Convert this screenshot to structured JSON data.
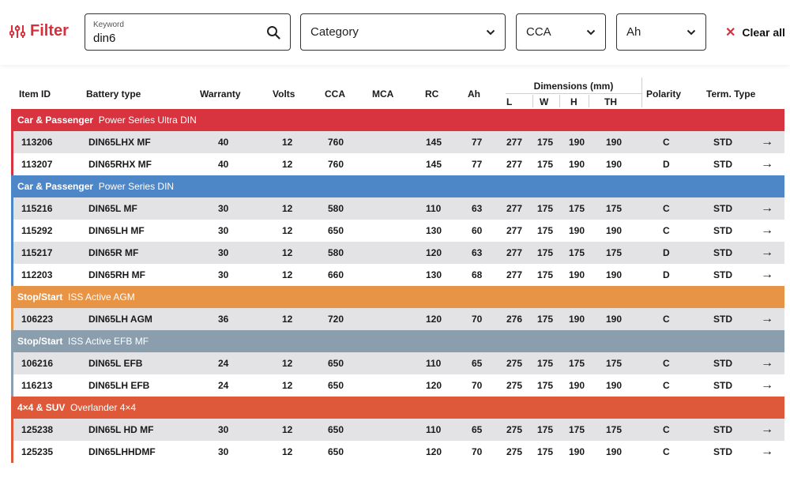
{
  "filter": {
    "title": "Filter",
    "icon": "sliders-icon",
    "keyword_label": "Keyword",
    "keyword_value": "din6",
    "category_placeholder": "Category",
    "cca_placeholder": "CCA",
    "ah_placeholder": "Ah",
    "clear_label": "Clear all"
  },
  "columns": {
    "item_id": "Item ID",
    "battery_type": "Battery type",
    "warranty": "Warranty",
    "volts": "Volts",
    "cca": "CCA",
    "mca": "MCA",
    "rc": "RC",
    "ah": "Ah",
    "dimensions": "Dimensions (mm)",
    "dim_l": "L",
    "dim_w": "W",
    "dim_h": "H",
    "dim_th": "TH",
    "polarity": "Polarity",
    "term_type": "Term. Type"
  },
  "groups": [
    {
      "category": "Car & Passenger",
      "series": "Power Series Ultra DIN",
      "color": "#d8343f",
      "rows": [
        {
          "id": "113206",
          "type": "DIN65LHX MF",
          "warranty": "40",
          "volts": "12",
          "cca": "760",
          "mca": "",
          "rc": "145",
          "ah": "77",
          "l": "277",
          "w": "175",
          "h": "190",
          "th": "190",
          "polarity": "C",
          "term": "STD"
        },
        {
          "id": "113207",
          "type": "DIN65RHX MF",
          "warranty": "40",
          "volts": "12",
          "cca": "760",
          "mca": "",
          "rc": "145",
          "ah": "77",
          "l": "277",
          "w": "175",
          "h": "190",
          "th": "190",
          "polarity": "D",
          "term": "STD"
        }
      ]
    },
    {
      "category": "Car & Passenger",
      "series": "Power Series DIN",
      "color": "#4e87c8",
      "rows": [
        {
          "id": "115216",
          "type": "DIN65L MF",
          "warranty": "30",
          "volts": "12",
          "cca": "580",
          "mca": "",
          "rc": "110",
          "ah": "63",
          "l": "277",
          "w": "175",
          "h": "175",
          "th": "175",
          "polarity": "C",
          "term": "STD"
        },
        {
          "id": "115292",
          "type": "DIN65LH MF",
          "warranty": "30",
          "volts": "12",
          "cca": "650",
          "mca": "",
          "rc": "130",
          "ah": "60",
          "l": "277",
          "w": "175",
          "h": "190",
          "th": "190",
          "polarity": "C",
          "term": "STD"
        },
        {
          "id": "115217",
          "type": "DIN65R MF",
          "warranty": "30",
          "volts": "12",
          "cca": "580",
          "mca": "",
          "rc": "120",
          "ah": "63",
          "l": "277",
          "w": "175",
          "h": "175",
          "th": "175",
          "polarity": "D",
          "term": "STD"
        },
        {
          "id": "112203",
          "type": "DIN65RH MF",
          "warranty": "30",
          "volts": "12",
          "cca": "660",
          "mca": "",
          "rc": "130",
          "ah": "68",
          "l": "277",
          "w": "175",
          "h": "190",
          "th": "190",
          "polarity": "D",
          "term": "STD"
        }
      ]
    },
    {
      "category": "Stop/Start",
      "series": "ISS Active AGM",
      "color": "#e89446",
      "rows": [
        {
          "id": "106223",
          "type": "DIN65LH AGM",
          "warranty": "36",
          "volts": "12",
          "cca": "720",
          "mca": "",
          "rc": "120",
          "ah": "70",
          "l": "276",
          "w": "175",
          "h": "190",
          "th": "190",
          "polarity": "C",
          "term": "STD"
        }
      ]
    },
    {
      "category": "Stop/Start",
      "series": "ISS Active EFB MF",
      "color": "#8a9eae",
      "rows": [
        {
          "id": "106216",
          "type": "DIN65L EFB",
          "warranty": "24",
          "volts": "12",
          "cca": "650",
          "mca": "",
          "rc": "110",
          "ah": "65",
          "l": "275",
          "w": "175",
          "h": "175",
          "th": "175",
          "polarity": "C",
          "term": "STD"
        },
        {
          "id": "116213",
          "type": "DIN65LH EFB",
          "warranty": "24",
          "volts": "12",
          "cca": "650",
          "mca": "",
          "rc": "120",
          "ah": "70",
          "l": "275",
          "w": "175",
          "h": "190",
          "th": "190",
          "polarity": "C",
          "term": "STD"
        }
      ]
    },
    {
      "category": "4×4 & SUV",
      "series": "Overlander 4×4",
      "color": "#dd5939",
      "rows": [
        {
          "id": "125238",
          "type": "DIN65L HD MF",
          "warranty": "30",
          "volts": "12",
          "cca": "650",
          "mca": "",
          "rc": "110",
          "ah": "65",
          "l": "275",
          "w": "175",
          "h": "175",
          "th": "175",
          "polarity": "C",
          "term": "STD"
        },
        {
          "id": "125235",
          "type": "DIN65LHHDMF",
          "warranty": "30",
          "volts": "12",
          "cca": "650",
          "mca": "",
          "rc": "120",
          "ah": "70",
          "l": "275",
          "w": "175",
          "h": "190",
          "th": "190",
          "polarity": "C",
          "term": "STD"
        }
      ]
    }
  ]
}
